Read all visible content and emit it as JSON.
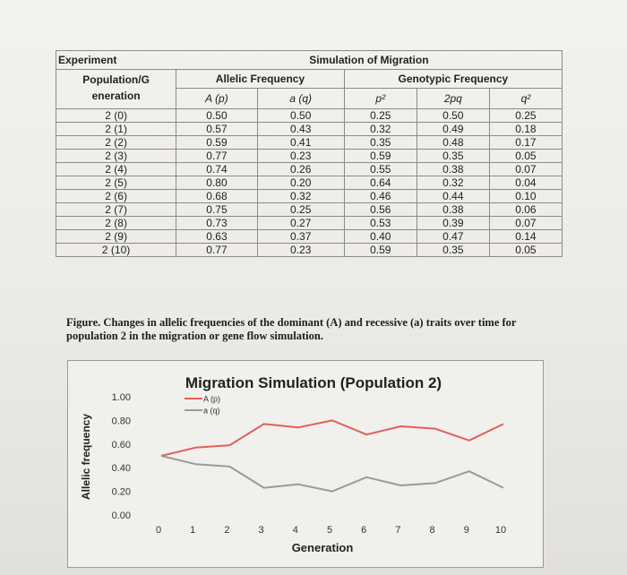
{
  "table": {
    "experiment_label": "Experiment",
    "simulation_label": "Simulation of Migration",
    "allelic_header": "Allelic Frequency",
    "genotypic_header": "Genotypic Frequency",
    "generation_header_line1": "Population/G",
    "generation_header_line2": "eneration",
    "col_A": "A (p)",
    "col_a": "a (q)",
    "col_p2": "p²",
    "col_2pq": "2pq",
    "col_q2": "q²",
    "rows": [
      {
        "gen": "2 (0)",
        "A": "0.50",
        "a": "0.50",
        "p2": "0.25",
        "pq2": "0.50",
        "q2": "0.25"
      },
      {
        "gen": "2 (1)",
        "A": "0.57",
        "a": "0.43",
        "p2": "0.32",
        "pq2": "0.49",
        "q2": "0.18"
      },
      {
        "gen": "2 (2)",
        "A": "0.59",
        "a": "0.41",
        "p2": "0.35",
        "pq2": "0.48",
        "q2": "0.17"
      },
      {
        "gen": "2 (3)",
        "A": "0.77",
        "a": "0.23",
        "p2": "0.59",
        "pq2": "0.35",
        "q2": "0.05"
      },
      {
        "gen": "2 (4)",
        "A": "0.74",
        "a": "0.26",
        "p2": "0.55",
        "pq2": "0.38",
        "q2": "0.07"
      },
      {
        "gen": "2 (5)",
        "A": "0.80",
        "a": "0.20",
        "p2": "0.64",
        "pq2": "0.32",
        "q2": "0.04"
      },
      {
        "gen": "2 (6)",
        "A": "0.68",
        "a": "0.32",
        "p2": "0.46",
        "pq2": "0.44",
        "q2": "0.10"
      },
      {
        "gen": "2 (7)",
        "A": "0.75",
        "a": "0.25",
        "p2": "0.56",
        "pq2": "0.38",
        "q2": "0.06"
      },
      {
        "gen": "2 (8)",
        "A": "0.73",
        "a": "0.27",
        "p2": "0.53",
        "pq2": "0.39",
        "q2": "0.07"
      },
      {
        "gen": "2 (9)",
        "A": "0.63",
        "a": "0.37",
        "p2": "0.40",
        "pq2": "0.47",
        "q2": "0.14"
      },
      {
        "gen": "2 (10)",
        "A": "0.77",
        "a": "0.23",
        "p2": "0.59",
        "pq2": "0.35",
        "q2": "0.05"
      }
    ]
  },
  "caption": "Figure. Changes in allelic frequencies of the dominant (A) and recessive (a) traits over time for population 2 in the migration or gene flow simulation.",
  "chart_data": {
    "type": "line",
    "title": "Migration Simulation (Population 2)",
    "xlabel": "Generation",
    "ylabel": "Allelic frequency",
    "x": [
      0,
      1,
      2,
      3,
      4,
      5,
      6,
      7,
      8,
      9,
      10
    ],
    "xticks": [
      "0",
      "1",
      "2",
      "3",
      "4",
      "5",
      "6",
      "7",
      "8",
      "9",
      "10"
    ],
    "yticks": [
      "0.00",
      "0.20",
      "0.40",
      "0.60",
      "0.80",
      "1.00"
    ],
    "ylim": [
      0,
      1
    ],
    "xlim": [
      0,
      10
    ],
    "grid": false,
    "legend_position": "top-left",
    "series": [
      {
        "name": "A (p)",
        "color": "#e0605a",
        "values": [
          0.5,
          0.57,
          0.59,
          0.77,
          0.74,
          0.8,
          0.68,
          0.75,
          0.73,
          0.63,
          0.77
        ]
      },
      {
        "name": "a (q)",
        "color": "#9a9a98",
        "values": [
          0.5,
          0.43,
          0.41,
          0.23,
          0.26,
          0.2,
          0.32,
          0.25,
          0.27,
          0.37,
          0.23
        ]
      }
    ]
  }
}
